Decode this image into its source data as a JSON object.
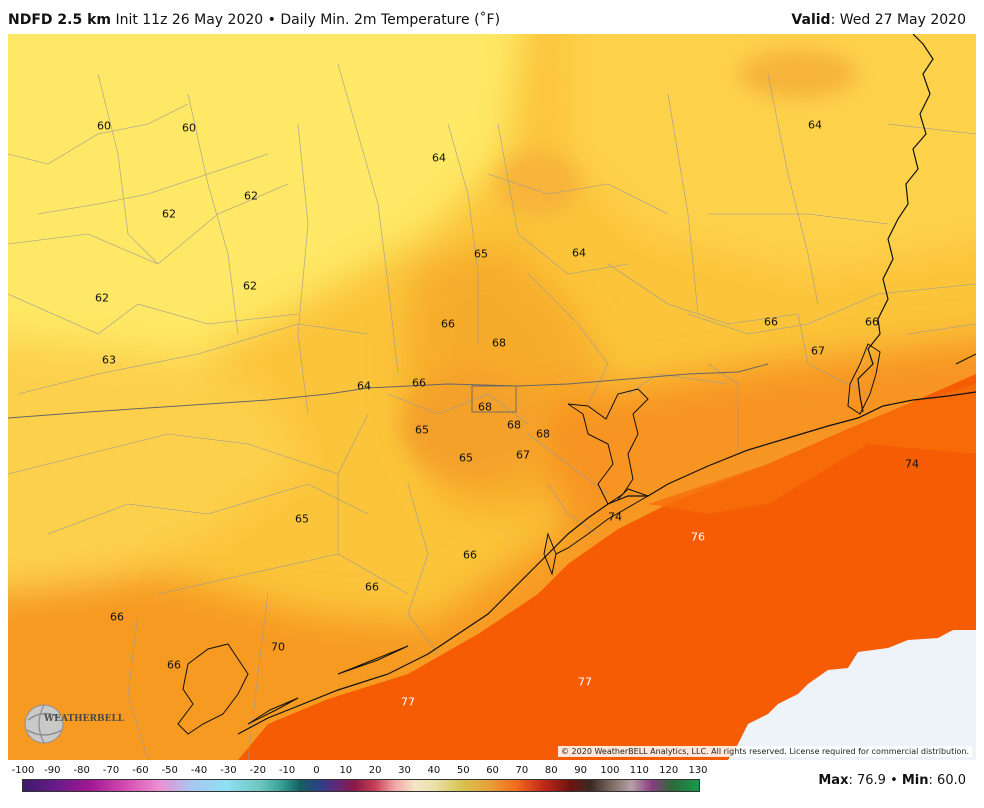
{
  "header": {
    "product": "NDFD 2.5 km",
    "subtitle": "Init 11z 26 May 2020 • Daily Min. 2m Temperature (˚F)",
    "valid_label": "Valid",
    "valid_value": ": Wed 27 May 2020"
  },
  "map": {
    "labels": [
      {
        "text": "60"
      },
      {
        "text": "60"
      },
      {
        "text": "64"
      },
      {
        "text": "64"
      },
      {
        "text": "62"
      },
      {
        "text": "62"
      },
      {
        "text": "65"
      },
      {
        "text": "64"
      },
      {
        "text": "62"
      },
      {
        "text": "62"
      },
      {
        "text": "66"
      },
      {
        "text": "68"
      },
      {
        "text": "66"
      },
      {
        "text": "66"
      },
      {
        "text": "67"
      },
      {
        "text": "63"
      },
      {
        "text": "64"
      },
      {
        "text": "66"
      },
      {
        "text": "68"
      },
      {
        "text": "68"
      },
      {
        "text": "68"
      },
      {
        "text": "65"
      },
      {
        "text": "65"
      },
      {
        "text": "67"
      },
      {
        "text": "74"
      },
      {
        "text": "65"
      },
      {
        "text": "74"
      },
      {
        "text": "76"
      },
      {
        "text": "66"
      },
      {
        "text": "66"
      },
      {
        "text": "66"
      },
      {
        "text": "70"
      },
      {
        "text": "66"
      },
      {
        "text": "77"
      },
      {
        "text": "77"
      }
    ],
    "copyright": "© 2020 WeatherBELL Analytics, LLC. All rights reserved. License required for commercial distribution.",
    "logo_text": "WEATHERBELL"
  },
  "colorbar": {
    "ticks": [
      "-100",
      "-90",
      "-80",
      "-70",
      "-60",
      "-50",
      "-40",
      "-30",
      "-20",
      "-10",
      "0",
      "10",
      "20",
      "30",
      "40",
      "50",
      "60",
      "70",
      "80",
      "90",
      "100",
      "110",
      "120",
      "130"
    ]
  },
  "stats": {
    "max_label": "Max",
    "max_value": ": 76.9",
    "sep": " • ",
    "min_label": "Min",
    "min_value": ": 60.0"
  }
}
